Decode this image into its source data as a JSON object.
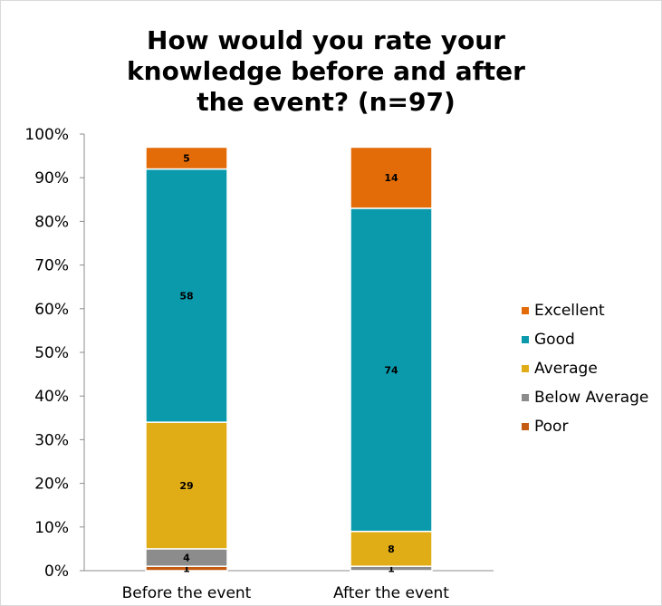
{
  "chart_data": {
    "type": "bar",
    "stacked": true,
    "title": "How would you rate your knowledge before and after the event? (n=97)",
    "categories": [
      "Before the event",
      "After the event"
    ],
    "yticks": [
      "0%",
      "10%",
      "20%",
      "30%",
      "40%",
      "50%",
      "60%",
      "70%",
      "80%",
      "90%",
      "100%"
    ],
    "ylim": [
      0,
      100
    ],
    "legend_position": "right",
    "series": [
      {
        "name": "Poor",
        "color": "#c55a11",
        "values": [
          1,
          0
        ],
        "labels": [
          "1",
          ""
        ]
      },
      {
        "name": "Below Average",
        "color": "#8c8c8c",
        "values": [
          4,
          1
        ],
        "labels": [
          "4",
          "1"
        ]
      },
      {
        "name": "Average",
        "color": "#e1ad17",
        "values": [
          29,
          8
        ],
        "labels": [
          "29",
          "8"
        ]
      },
      {
        "name": "Good",
        "color": "#0b9aac",
        "values": [
          58,
          74
        ],
        "labels": [
          "58",
          "74"
        ]
      },
      {
        "name": "Excellent",
        "color": "#e36c09",
        "values": [
          5,
          14
        ],
        "labels": [
          "5",
          "14"
        ]
      }
    ]
  }
}
